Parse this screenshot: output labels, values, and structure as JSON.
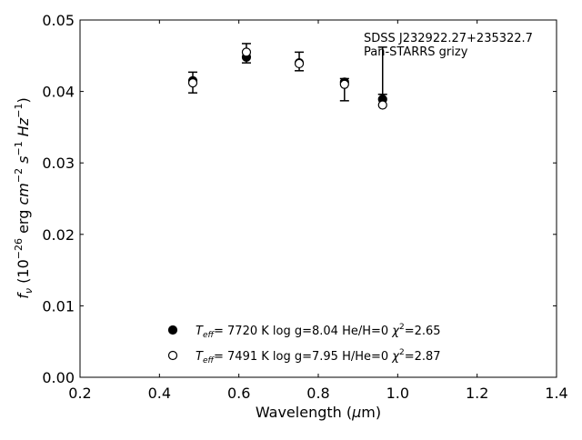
{
  "chart_data": {
    "type": "scatter",
    "xlabel": "Wavelength (μm)",
    "ylabel": "fν (10⁻²⁶ erg cm⁻² s⁻¹ Hz⁻¹)",
    "xlim": [
      0.2,
      1.4
    ],
    "ylim": [
      0.0,
      0.05
    ],
    "xticks": [
      "0.2",
      "0.4",
      "0.6",
      "0.8",
      "1.0",
      "1.2",
      "1.4"
    ],
    "yticks": [
      "0.00",
      "0.01",
      "0.02",
      "0.03",
      "0.04",
      "0.05"
    ],
    "grid": false,
    "legend_position": "bottom-center",
    "annotation": {
      "line1": "SDSS J232922.27+235322.7",
      "line2": "Pan-STARRS grizy"
    },
    "observed": {
      "x": [
        0.484,
        0.619,
        0.752,
        0.866,
        0.962
      ],
      "y": [
        0.0412,
        0.0453,
        0.0442,
        0.0413,
        0.0428
      ],
      "yerr_low": [
        0.0014,
        0.0013,
        0.0013,
        0.0026,
        0.0032
      ],
      "yerr_high": [
        0.0015,
        0.0014,
        0.0013,
        0.0005,
        0.0034
      ]
    },
    "series": [
      {
        "label": "T_eff=  7720 K  log g=8.04  He/H=0  χ²=2.65",
        "marker": "filled",
        "x": [
          0.484,
          0.619,
          0.752,
          0.866,
          0.962
        ],
        "y": [
          0.0415,
          0.0448,
          0.044,
          0.0413,
          0.0389
        ]
      },
      {
        "label": "T_eff=  7491 K  log g=7.95  H/He=0  χ²=2.87",
        "marker": "open",
        "x": [
          0.484,
          0.619,
          0.752,
          0.866,
          0.962
        ],
        "y": [
          0.0412,
          0.0455,
          0.0439,
          0.041,
          0.0381
        ]
      }
    ]
  }
}
